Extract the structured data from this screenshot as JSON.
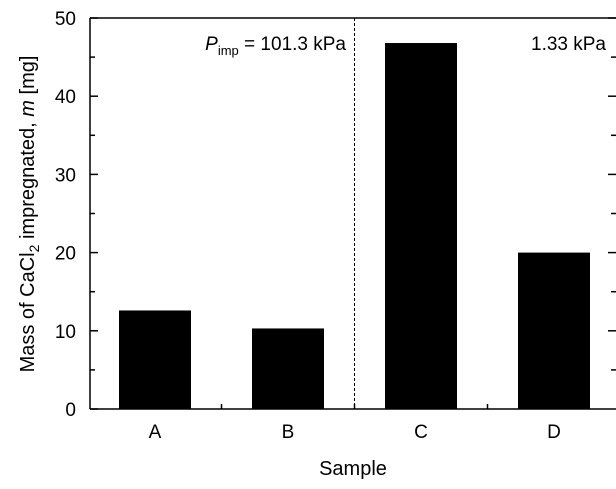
{
  "chart_data": {
    "type": "bar",
    "title": "",
    "xlabel": "Sample",
    "ylabel": {
      "pre": "Mass of CaCl",
      "sub": "2",
      "mid": " impregnated, ",
      "var": "m",
      "unit": "  [mg]"
    },
    "categories": [
      "A",
      "B",
      "C",
      "D"
    ],
    "values": [
      12.6,
      10.3,
      46.8,
      20.0
    ],
    "ylim": [
      0,
      50
    ],
    "yticks": [
      "0",
      "10",
      "20",
      "30",
      "40",
      "50"
    ],
    "minor_y_step": 5,
    "grid": false,
    "bar_color": "#000000",
    "annotations": {
      "left": {
        "symbol": "P",
        "sub": "imp",
        "text": " = 101.3 kPa"
      },
      "right": {
        "text": "1.33 kPa"
      }
    },
    "divider_after_category": 2
  }
}
